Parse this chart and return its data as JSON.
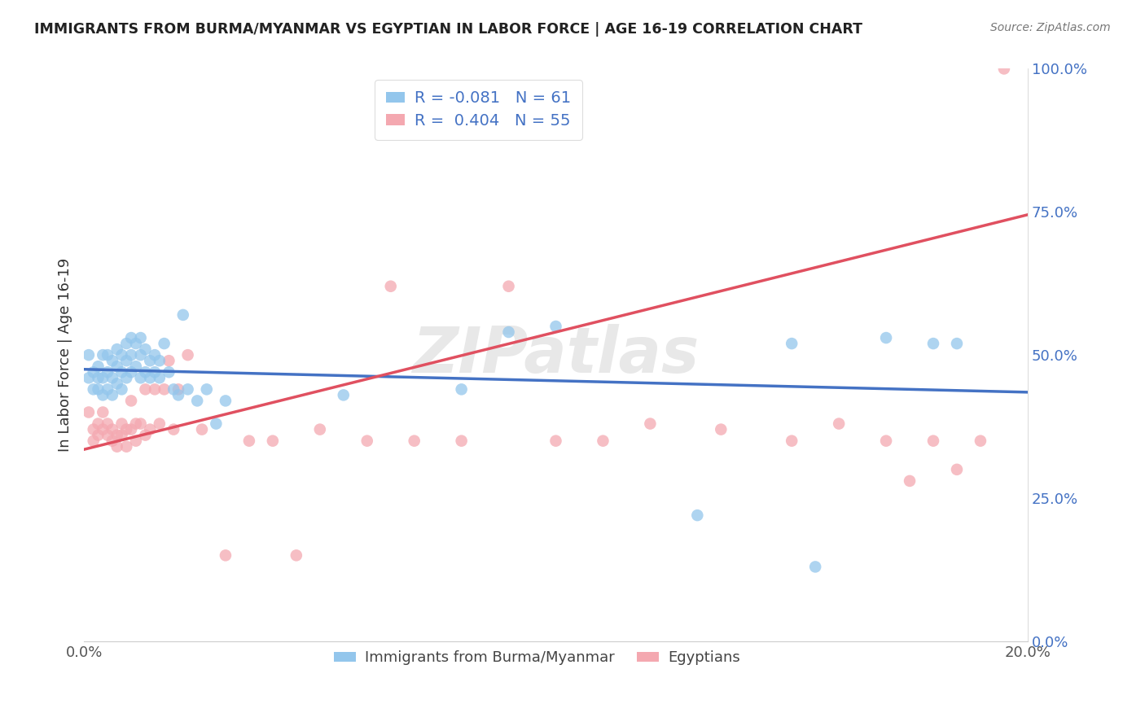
{
  "title": "IMMIGRANTS FROM BURMA/MYANMAR VS EGYPTIAN IN LABOR FORCE | AGE 16-19 CORRELATION CHART",
  "source": "Source: ZipAtlas.com",
  "ylabel": "In Labor Force | Age 16-19",
  "xlim": [
    0.0,
    0.2
  ],
  "ylim": [
    0.0,
    1.0
  ],
  "xticks": [
    0.0,
    0.05,
    0.1,
    0.15,
    0.2
  ],
  "xtick_labels": [
    "0.0%",
    "",
    "",
    "",
    "20.0%"
  ],
  "yticks_right": [
    0.0,
    0.25,
    0.5,
    0.75,
    1.0
  ],
  "ytick_labels_right": [
    "0.0%",
    "25.0%",
    "50.0%",
    "75.0%",
    "100.0%"
  ],
  "color_burma": "#93C6EC",
  "color_egypt": "#F4A8B0",
  "line_color_burma": "#4472C4",
  "line_color_egypt": "#E05060",
  "R_burma": -0.081,
  "N_burma": 61,
  "R_egypt": 0.404,
  "N_egypt": 55,
  "legend_label_burma": "Immigrants from Burma/Myanmar",
  "legend_label_egypt": "Egyptians",
  "watermark": "ZIPatlas",
  "background_color": "#FFFFFF",
  "grid_color": "#CCCCCC",
  "burma_trend_x0": 0.0,
  "burma_trend_y0": 0.475,
  "burma_trend_x1": 0.2,
  "burma_trend_y1": 0.435,
  "egypt_trend_x0": 0.0,
  "egypt_trend_y0": 0.335,
  "egypt_trend_x1": 0.2,
  "egypt_trend_y1": 0.745,
  "burma_x": [
    0.001,
    0.001,
    0.002,
    0.002,
    0.003,
    0.003,
    0.003,
    0.004,
    0.004,
    0.004,
    0.005,
    0.005,
    0.005,
    0.006,
    0.006,
    0.006,
    0.007,
    0.007,
    0.007,
    0.008,
    0.008,
    0.008,
    0.009,
    0.009,
    0.009,
    0.01,
    0.01,
    0.01,
    0.011,
    0.011,
    0.012,
    0.012,
    0.012,
    0.013,
    0.013,
    0.014,
    0.014,
    0.015,
    0.015,
    0.016,
    0.016,
    0.017,
    0.018,
    0.019,
    0.02,
    0.021,
    0.022,
    0.024,
    0.026,
    0.028,
    0.03,
    0.055,
    0.08,
    0.09,
    0.1,
    0.13,
    0.15,
    0.155,
    0.17,
    0.18,
    0.185
  ],
  "burma_y": [
    0.46,
    0.5,
    0.44,
    0.47,
    0.44,
    0.46,
    0.48,
    0.43,
    0.46,
    0.5,
    0.44,
    0.47,
    0.5,
    0.43,
    0.46,
    0.49,
    0.45,
    0.48,
    0.51,
    0.44,
    0.47,
    0.5,
    0.46,
    0.49,
    0.52,
    0.47,
    0.5,
    0.53,
    0.48,
    0.52,
    0.46,
    0.5,
    0.53,
    0.47,
    0.51,
    0.46,
    0.49,
    0.47,
    0.5,
    0.46,
    0.49,
    0.52,
    0.47,
    0.44,
    0.43,
    0.57,
    0.44,
    0.42,
    0.44,
    0.38,
    0.42,
    0.43,
    0.44,
    0.54,
    0.55,
    0.22,
    0.52,
    0.13,
    0.53,
    0.52,
    0.52
  ],
  "egypt_x": [
    0.001,
    0.002,
    0.002,
    0.003,
    0.003,
    0.004,
    0.004,
    0.005,
    0.005,
    0.006,
    0.006,
    0.007,
    0.007,
    0.008,
    0.008,
    0.009,
    0.009,
    0.01,
    0.01,
    0.011,
    0.011,
    0.012,
    0.013,
    0.013,
    0.014,
    0.015,
    0.016,
    0.017,
    0.018,
    0.019,
    0.02,
    0.022,
    0.025,
    0.03,
    0.035,
    0.04,
    0.045,
    0.05,
    0.06,
    0.065,
    0.07,
    0.08,
    0.09,
    0.1,
    0.11,
    0.12,
    0.135,
    0.15,
    0.16,
    0.17,
    0.175,
    0.18,
    0.185,
    0.19,
    0.195
  ],
  "egypt_y": [
    0.4,
    0.37,
    0.35,
    0.38,
    0.36,
    0.37,
    0.4,
    0.36,
    0.38,
    0.35,
    0.37,
    0.34,
    0.36,
    0.36,
    0.38,
    0.34,
    0.37,
    0.37,
    0.42,
    0.35,
    0.38,
    0.38,
    0.36,
    0.44,
    0.37,
    0.44,
    0.38,
    0.44,
    0.49,
    0.37,
    0.44,
    0.5,
    0.37,
    0.15,
    0.35,
    0.35,
    0.15,
    0.37,
    0.35,
    0.62,
    0.35,
    0.35,
    0.62,
    0.35,
    0.35,
    0.38,
    0.37,
    0.35,
    0.38,
    0.35,
    0.28,
    0.35,
    0.3,
    0.35,
    1.0
  ]
}
